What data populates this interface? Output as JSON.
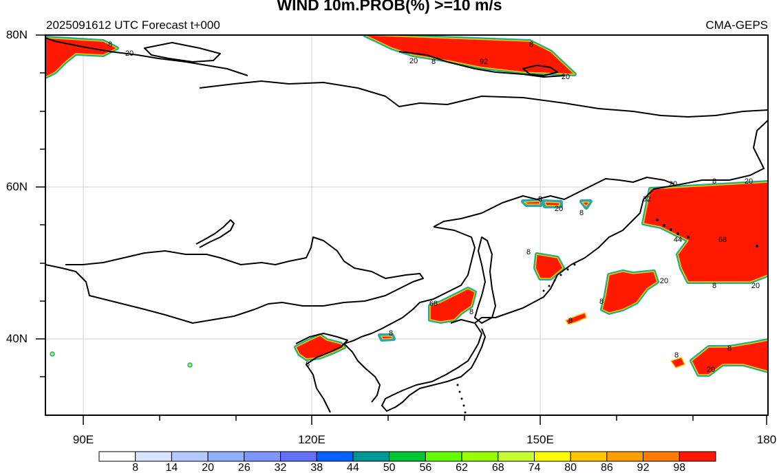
{
  "header": {
    "title": "WIND 10m.PROB(%) >=10 m/s",
    "run_info": "2025091612 UTC Forecast t+000",
    "model": "CMA-GEPS"
  },
  "axes": {
    "lat_labels": [
      "80N",
      "60N",
      "40N"
    ],
    "lon_labels": [
      "90E",
      "120E",
      "150E",
      "180"
    ]
  },
  "colorbar": {
    "ticks": [
      "8",
      "14",
      "20",
      "26",
      "32",
      "38",
      "44",
      "50",
      "56",
      "62",
      "68",
      "74",
      "80",
      "86",
      "92",
      "98"
    ],
    "colors": [
      "#ffffff",
      "#d6e2ff",
      "#b5c9ff",
      "#8eb2ff",
      "#7f96ff",
      "#6370f8",
      "#0063ff",
      "#009696",
      "#00c633",
      "#63ff00",
      "#96ff00",
      "#c6ff33",
      "#ffff00",
      "#ffc600",
      "#ffa000",
      "#ff7c00",
      "#ff1900"
    ]
  },
  "contour_labels": [
    "8",
    "20",
    "8",
    "20",
    "8",
    "92",
    "20",
    "20",
    "8",
    "20",
    "8",
    "32",
    "8",
    "20",
    "8",
    "44",
    "68",
    "8",
    "20",
    "20",
    "8",
    "8",
    "68",
    "8",
    "8",
    "8",
    "8",
    "20",
    "8"
  ]
}
